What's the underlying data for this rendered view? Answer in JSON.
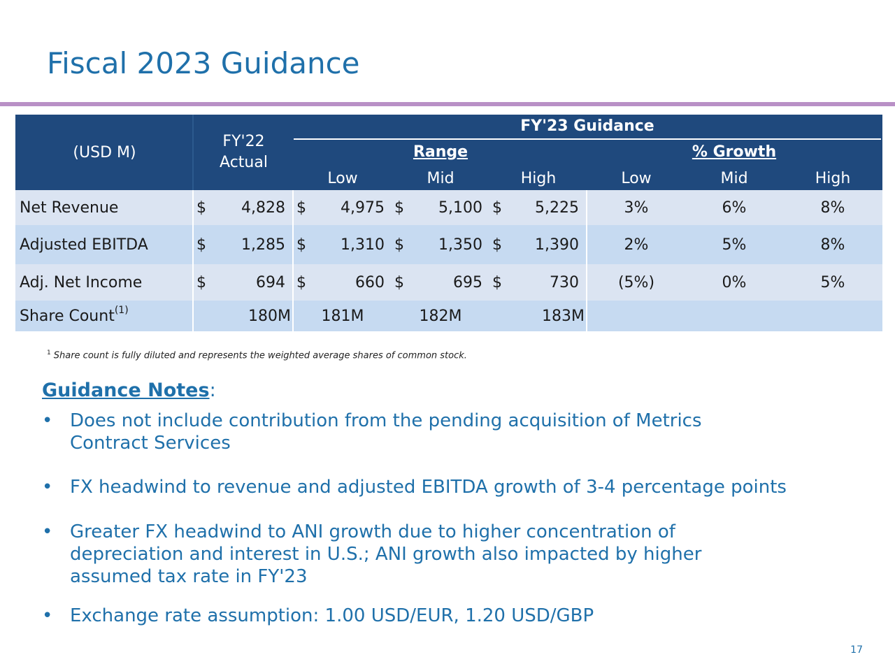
{
  "title": "Fiscal 2023 Guidance",
  "table": {
    "unit_header": "(USD M)",
    "actual_header_line1": "FY'22",
    "actual_header_line2": "Actual",
    "guidance_header": "FY'23 Guidance",
    "range_header": "Range",
    "growth_header": "% Growth",
    "sub_headers": [
      "Low",
      "Mid",
      "High",
      "Low",
      "Mid",
      "High"
    ],
    "rows": [
      {
        "label": "Net Revenue",
        "actual": "4,828",
        "low": "4,975",
        "mid": "5,100",
        "high": "5,225",
        "g_low": "3%",
        "g_mid": "6%",
        "g_high": "8%"
      },
      {
        "label": "Adjusted EBITDA",
        "actual": "1,285",
        "low": "1,310",
        "mid": "1,350",
        "high": "1,390",
        "g_low": "2%",
        "g_mid": "5%",
        "g_high": "8%"
      },
      {
        "label": "Adj. Net Income",
        "actual": "694",
        "low": "660",
        "mid": "695",
        "high": "730",
        "g_low": "(5%)",
        "g_mid": "0%",
        "g_high": "5%"
      }
    ],
    "dollar": "$",
    "share_row": {
      "label": "Share Count",
      "sup": "(1)",
      "actual": "180M",
      "low": "181M",
      "mid": "182M",
      "high": "183M"
    }
  },
  "footnote": {
    "marker": "1",
    "text": "Share count is fully diluted and represents the weighted average shares of common stock."
  },
  "notes": {
    "heading": "Guidance Notes",
    "colon": ":",
    "bullets": [
      "Does not include contribution from the pending acquisition of Metrics Contract Services",
      "FX headwind to revenue and adjusted EBITDA growth of 3-4 percentage points",
      "Greater FX headwind to ANI growth due to higher concentration of depreciation and interest in U.S.; ANI growth also impacted by higher assumed tax rate in FY'23",
      "Exchange rate assumption: 1.00 USD/EUR, 1.20 USD/GBP"
    ]
  },
  "page_number": "17",
  "colors": {
    "header": "#1f497d",
    "title": "#1f70aa",
    "rule": "#b990c6"
  }
}
